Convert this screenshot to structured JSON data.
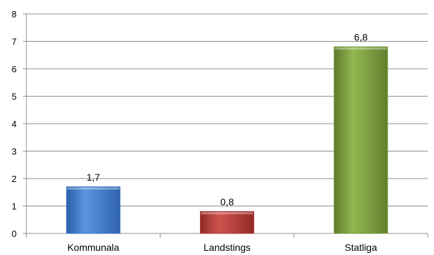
{
  "chart_data": {
    "type": "bar",
    "categories": [
      "Kommunala",
      "Landstings",
      "Statliga"
    ],
    "values": [
      1.7,
      0.8,
      6.8
    ],
    "data_labels": [
      "1,7",
      "0,8",
      "6,8"
    ],
    "colors": [
      "#3d78c9",
      "#b23a36",
      "#7a9c3c"
    ],
    "ylim": [
      0,
      8
    ],
    "yticks": [
      "0",
      "1",
      "2",
      "3",
      "4",
      "5",
      "6",
      "7",
      "8"
    ],
    "grid": true,
    "legend": "none"
  }
}
